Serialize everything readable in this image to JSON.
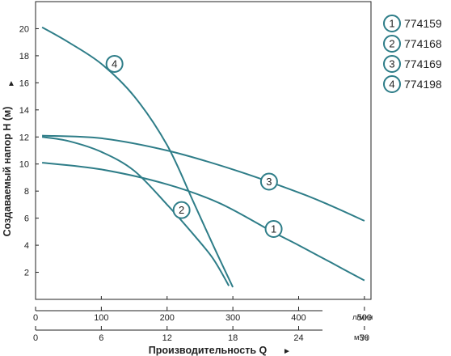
{
  "chart_data": {
    "type": "line",
    "ylabel": "Создаваемый напор H (м)",
    "ylabel_arrow": "▲",
    "xlabel": "Производительность Q",
    "xlabel_arrow": "►",
    "x_lpm": {
      "unit": "л/мин",
      "ticks": [
        0,
        100,
        200,
        300,
        400,
        500
      ]
    },
    "x_m3h": {
      "unit": "м³/ч",
      "ticks": [
        0,
        6,
        12,
        18,
        24,
        30
      ]
    },
    "y": {
      "ticks": [
        2,
        4,
        6,
        8,
        10,
        12,
        14,
        16,
        18,
        20
      ],
      "range": [
        0,
        22
      ]
    },
    "x_range": [
      0,
      510
    ],
    "grid": false,
    "curve_color": "#2e7d88",
    "series": [
      {
        "marker": "1",
        "name": "774159",
        "points": [
          [
            10,
            10.1
          ],
          [
            100,
            9.6
          ],
          [
            200,
            8.5
          ],
          [
            280,
            7.1
          ],
          [
            360,
            5.0
          ],
          [
            400,
            4.0
          ],
          [
            450,
            2.7
          ],
          [
            500,
            1.4
          ]
        ],
        "marker_at": [
          362,
          5.2
        ]
      },
      {
        "marker": "2",
        "name": "774168",
        "points": [
          [
            10,
            12.0
          ],
          [
            50,
            11.7
          ],
          [
            100,
            10.9
          ],
          [
            150,
            9.5
          ],
          [
            200,
            7.0
          ],
          [
            240,
            4.8
          ],
          [
            270,
            3.0
          ],
          [
            294,
            1.0
          ]
        ],
        "marker_at": [
          222,
          6.6
        ]
      },
      {
        "marker": "3",
        "name": "774169",
        "points": [
          [
            10,
            12.1
          ],
          [
            100,
            11.9
          ],
          [
            200,
            11.0
          ],
          [
            300,
            9.6
          ],
          [
            400,
            7.9
          ],
          [
            450,
            6.9
          ],
          [
            500,
            5.8
          ]
        ],
        "marker_at": [
          355,
          8.7
        ]
      },
      {
        "marker": "4",
        "name": "774198",
        "points": [
          [
            10,
            20.1
          ],
          [
            50,
            19.0
          ],
          [
            100,
            17.4
          ],
          [
            150,
            15.0
          ],
          [
            200,
            11.4
          ],
          [
            240,
            7.2
          ],
          [
            270,
            4.0
          ],
          [
            300,
            0.9
          ]
        ],
        "marker_at": [
          120,
          17.4
        ]
      }
    ]
  }
}
